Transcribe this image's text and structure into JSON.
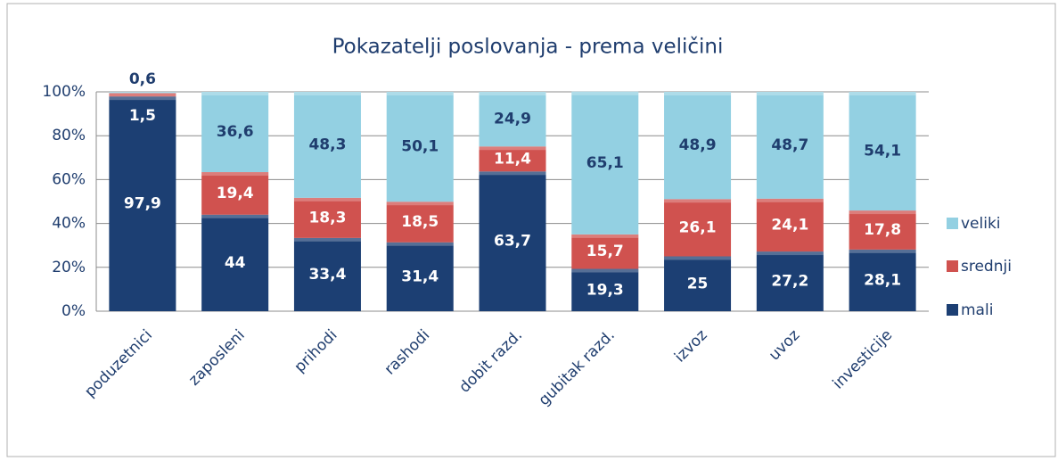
{
  "chart_data": {
    "type": "stacked_bar_percent",
    "title": "Pokazatelji poslovanja - prema veličini",
    "categories": [
      "poduzetnici",
      "zaposleni",
      "prihodi",
      "rashodi",
      "dobit razd.",
      "gubitak razd.",
      "izvoz",
      "uvoz",
      "investicije"
    ],
    "series": [
      {
        "name": "mali",
        "color": "#1c3f73",
        "values": [
          97.9,
          44,
          33.4,
          31.4,
          63.7,
          19.3,
          25,
          27.2,
          28.1
        ],
        "value_labels": [
          "97,9",
          "44",
          "33,4",
          "31,4",
          "63,7",
          "19,3",
          "25",
          "27,2",
          "28,1"
        ]
      },
      {
        "name": "srednji",
        "color": "#d0524f",
        "values": [
          1.5,
          19.4,
          18.3,
          18.5,
          11.4,
          15.7,
          26.1,
          24.1,
          17.8
        ],
        "value_labels": [
          "1,5",
          "19,4",
          "18,3",
          "18,5",
          "11,4",
          "15,7",
          "26,1",
          "24,1",
          "17,8"
        ]
      },
      {
        "name": "veliki",
        "color": "#93d0e2",
        "values": [
          0.6,
          36.6,
          48.3,
          50.1,
          24.9,
          65.1,
          48.9,
          48.7,
          54.1
        ],
        "value_labels": [
          "0,6",
          "36,6",
          "48,3",
          "50,1",
          "24,9",
          "65,1",
          "48,9",
          "48,7",
          "54,1"
        ]
      }
    ],
    "ylim": [
      0,
      100
    ],
    "yticks": [
      {
        "value": 0,
        "label": "0%"
      },
      {
        "value": 20,
        "label": "20%"
      },
      {
        "value": 40,
        "label": "40%"
      },
      {
        "value": 60,
        "label": "60%"
      },
      {
        "value": 80,
        "label": "80%"
      },
      {
        "value": 100,
        "label": "100%"
      }
    ],
    "grid": true,
    "legend": "right"
  }
}
